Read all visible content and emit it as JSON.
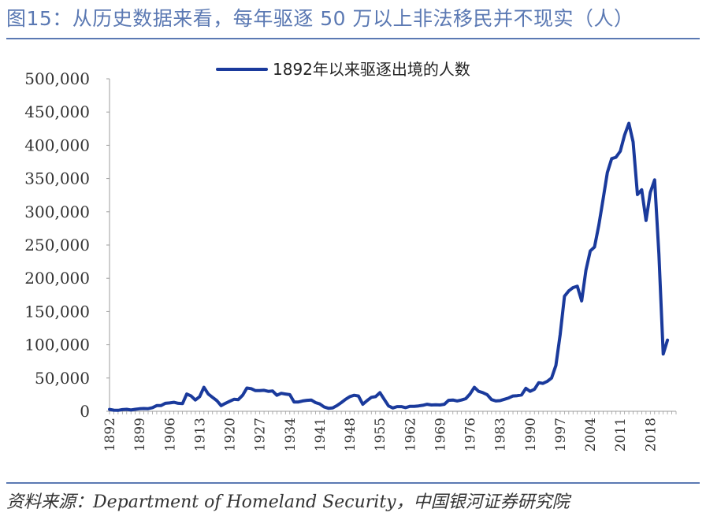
{
  "header": {
    "title": "图15：从历史数据来看，每年驱逐 50 万以上非法移民并不现实（人）"
  },
  "footer": {
    "source": "资料来源：Department of Homeland Security，中国银河证券研究院"
  },
  "colors": {
    "series": "#1a3a9c",
    "accent": "#5b79b3",
    "axis": "#9e9e9e"
  },
  "chart_data": {
    "type": "line",
    "title": "",
    "xlabel": "",
    "ylabel": "",
    "ylim": [
      0,
      500000
    ],
    "xlim": [
      1892,
      2024
    ],
    "grid": false,
    "legend_position": "top-center",
    "yticks": [
      "0",
      "50,000",
      "100,000",
      "150,000",
      "200,000",
      "250,000",
      "300,000",
      "350,000",
      "400,000",
      "450,000",
      "500,000"
    ],
    "xticks": [
      "1892",
      "1899",
      "1906",
      "1913",
      "1920",
      "1927",
      "1934",
      "1941",
      "1948",
      "1955",
      "1962",
      "1969",
      "1976",
      "1983",
      "1990",
      "1997",
      "2004",
      "2011",
      "2018"
    ],
    "series": [
      {
        "name": "1892年以来驱逐出境的人数",
        "color": "#1a3a9c",
        "points": [
          [
            1892,
            2800
          ],
          [
            1893,
            1600
          ],
          [
            1894,
            1400
          ],
          [
            1895,
            2500
          ],
          [
            1896,
            3000
          ],
          [
            1897,
            1900
          ],
          [
            1898,
            3000
          ],
          [
            1899,
            3800
          ],
          [
            1900,
            4200
          ],
          [
            1901,
            3900
          ],
          [
            1902,
            5500
          ],
          [
            1903,
            8500
          ],
          [
            1904,
            8500
          ],
          [
            1905,
            12000
          ],
          [
            1906,
            12500
          ],
          [
            1907,
            13500
          ],
          [
            1908,
            12000
          ],
          [
            1909,
            11500
          ],
          [
            1910,
            26000
          ],
          [
            1911,
            23000
          ],
          [
            1912,
            17000
          ],
          [
            1913,
            22000
          ],
          [
            1914,
            36000
          ],
          [
            1915,
            26000
          ],
          [
            1916,
            21000
          ],
          [
            1917,
            16000
          ],
          [
            1918,
            8500
          ],
          [
            1919,
            12000
          ],
          [
            1920,
            15000
          ],
          [
            1921,
            18000
          ],
          [
            1922,
            17500
          ],
          [
            1923,
            24000
          ],
          [
            1924,
            35000
          ],
          [
            1925,
            34000
          ],
          [
            1926,
            31000
          ],
          [
            1927,
            31000
          ],
          [
            1928,
            31500
          ],
          [
            1929,
            30000
          ],
          [
            1930,
            30500
          ],
          [
            1931,
            24000
          ],
          [
            1932,
            27000
          ],
          [
            1933,
            26000
          ],
          [
            1934,
            25000
          ],
          [
            1935,
            14000
          ],
          [
            1936,
            14000
          ],
          [
            1937,
            15500
          ],
          [
            1938,
            16500
          ],
          [
            1939,
            17000
          ],
          [
            1940,
            13000
          ],
          [
            1941,
            11000
          ],
          [
            1942,
            6500
          ],
          [
            1943,
            4500
          ],
          [
            1944,
            5000
          ],
          [
            1945,
            8500
          ],
          [
            1946,
            13000
          ],
          [
            1947,
            18000
          ],
          [
            1948,
            22000
          ],
          [
            1949,
            24000
          ],
          [
            1950,
            23000
          ],
          [
            1951,
            10500
          ],
          [
            1952,
            16000
          ],
          [
            1953,
            21000
          ],
          [
            1954,
            22000
          ],
          [
            1955,
            28000
          ],
          [
            1956,
            18000
          ],
          [
            1957,
            8000
          ],
          [
            1958,
            5000
          ],
          [
            1959,
            7000
          ],
          [
            1960,
            7000
          ],
          [
            1961,
            5500
          ],
          [
            1962,
            7500
          ],
          [
            1963,
            7500
          ],
          [
            1964,
            8000
          ],
          [
            1965,
            9000
          ],
          [
            1966,
            10500
          ],
          [
            1967,
            9500
          ],
          [
            1968,
            9800
          ],
          [
            1969,
            9500
          ],
          [
            1970,
            10500
          ],
          [
            1971,
            16500
          ],
          [
            1972,
            17000
          ],
          [
            1973,
            15500
          ],
          [
            1974,
            17000
          ],
          [
            1975,
            19000
          ],
          [
            1976,
            26000
          ],
          [
            1977,
            36000
          ],
          [
            1978,
            30000
          ],
          [
            1979,
            28000
          ],
          [
            1980,
            25000
          ],
          [
            1981,
            17500
          ],
          [
            1982,
            15500
          ],
          [
            1983,
            16000
          ],
          [
            1984,
            18000
          ],
          [
            1985,
            20000
          ],
          [
            1986,
            23000
          ],
          [
            1987,
            23500
          ],
          [
            1988,
            24500
          ],
          [
            1989,
            34500
          ],
          [
            1990,
            30000
          ],
          [
            1991,
            33000
          ],
          [
            1992,
            43000
          ],
          [
            1993,
            42000
          ],
          [
            1994,
            45000
          ],
          [
            1995,
            50000
          ],
          [
            1996,
            69000
          ],
          [
            1997,
            115000
          ],
          [
            1998,
            173000
          ],
          [
            1999,
            181000
          ],
          [
            2000,
            186000
          ],
          [
            2001,
            188000
          ],
          [
            2002,
            166000
          ],
          [
            2003,
            212000
          ],
          [
            2004,
            241000
          ],
          [
            2005,
            247000
          ],
          [
            2006,
            280000
          ],
          [
            2007,
            319000
          ],
          [
            2008,
            359000
          ],
          [
            2009,
            380000
          ],
          [
            2010,
            382000
          ],
          [
            2011,
            391000
          ],
          [
            2012,
            415000
          ],
          [
            2013,
            433000
          ],
          [
            2014,
            405000
          ],
          [
            2015,
            326000
          ],
          [
            2016,
            333000
          ],
          [
            2017,
            287000
          ],
          [
            2018,
            329000
          ],
          [
            2019,
            348000
          ],
          [
            2020,
            237000
          ],
          [
            2021,
            86000
          ],
          [
            2022,
            107000
          ]
        ]
      }
    ]
  }
}
